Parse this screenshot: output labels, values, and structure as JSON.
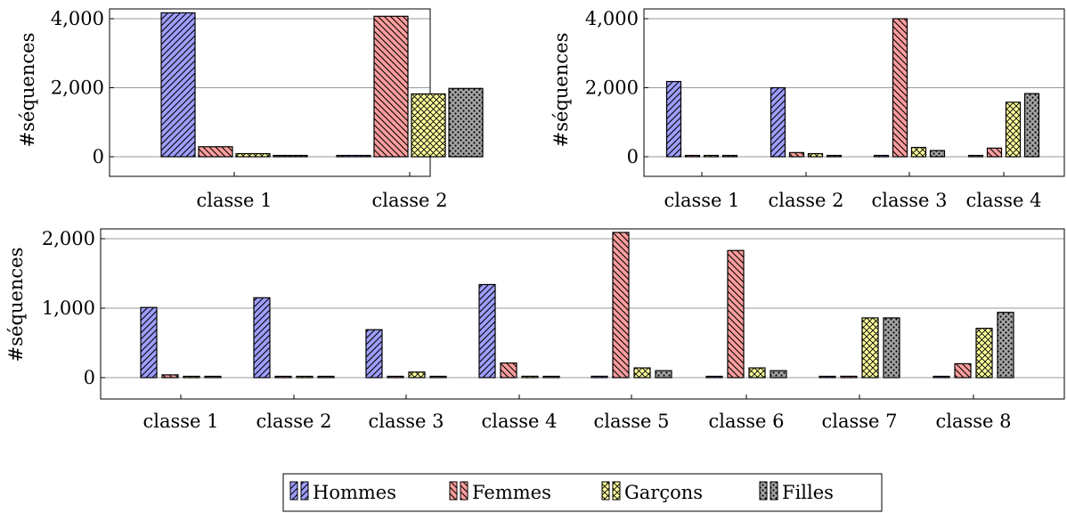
{
  "series_names": [
    "Hommes",
    "Femmes",
    "Garçons",
    "Filles"
  ],
  "colors": [
    "#9e9eff",
    "#ff9e9e",
    "#ffff9e",
    "#a3a3a3"
  ],
  "patterns": [
    "diag-up",
    "diag-down",
    "crosshatch",
    "dots"
  ],
  "chart_data": [
    {
      "type": "bar",
      "title": "",
      "xlabel": "",
      "ylabel": "#séquences",
      "ylim": [
        -600,
        4200
      ],
      "yticks": [
        0,
        2000,
        4000
      ],
      "ytick_labels": [
        "0",
        "2,000",
        "4,000"
      ],
      "grid": true,
      "categories": [
        "classe 1",
        "classe 2"
      ],
      "series": [
        {
          "name": "Hommes",
          "values": [
            4170,
            30
          ]
        },
        {
          "name": "Femmes",
          "values": [
            290,
            4070
          ]
        },
        {
          "name": "Garçons",
          "values": [
            90,
            1820
          ]
        },
        {
          "name": "Filles",
          "values": [
            20,
            1980
          ]
        }
      ]
    },
    {
      "type": "bar",
      "title": "",
      "xlabel": "",
      "ylabel": "#séquences",
      "ylim": [
        -600,
        4200
      ],
      "yticks": [
        0,
        2000,
        4000
      ],
      "ytick_labels": [
        "0",
        "2,000",
        "4,000"
      ],
      "grid": true,
      "categories": [
        "classe 1",
        "classe 2",
        "classe 3",
        "classe 4"
      ],
      "series": [
        {
          "name": "Hommes",
          "values": [
            2180,
            2000,
            30,
            10
          ]
        },
        {
          "name": "Femmes",
          "values": [
            30,
            120,
            4000,
            250
          ]
        },
        {
          "name": "Garçons",
          "values": [
            10,
            90,
            270,
            1580
          ]
        },
        {
          "name": "Filles",
          "values": [
            10,
            10,
            180,
            1830
          ]
        }
      ]
    },
    {
      "type": "bar",
      "title": "",
      "xlabel": "",
      "ylabel": "#séquences",
      "ylim": [
        -300,
        2100
      ],
      "yticks": [
        0,
        1000,
        2000
      ],
      "ytick_labels": [
        "0",
        "1,000",
        "2,000"
      ],
      "grid": true,
      "categories": [
        "classe 1",
        "classe 2",
        "classe 3",
        "classe 4",
        "classe 5",
        "classe 6",
        "classe 7",
        "classe 8"
      ],
      "series": [
        {
          "name": "Hommes",
          "values": [
            1010,
            1150,
            690,
            1340,
            20,
            10,
            10,
            10
          ]
        },
        {
          "name": "Femmes",
          "values": [
            40,
            10,
            10,
            210,
            2090,
            1830,
            20,
            200
          ]
        },
        {
          "name": "Garçons",
          "values": [
            10,
            10,
            80,
            20,
            140,
            140,
            860,
            710
          ]
        },
        {
          "name": "Filles",
          "values": [
            10,
            10,
            10,
            10,
            100,
            100,
            860,
            940
          ]
        }
      ]
    }
  ],
  "legend": {
    "placement": "bottom-center"
  }
}
